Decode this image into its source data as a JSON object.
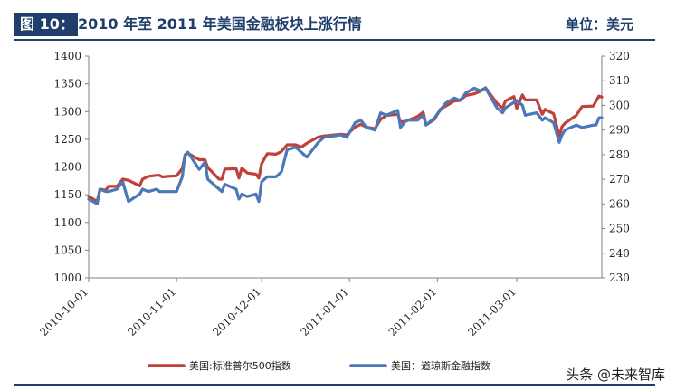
{
  "header": {
    "fig_label": "图 10：",
    "title": "2010 年至 2011 年美国金融板块上涨行情",
    "unit": "单位：美元"
  },
  "watermark": "头条 @未来智库",
  "colors": {
    "accent": "#1f3e6c",
    "sp500": "#c0413b",
    "dowfin": "#4a78b8",
    "axis": "#808080"
  },
  "chart_data": {
    "type": "line",
    "title": "",
    "xlabel": "",
    "ylabel": "",
    "x_ticks": [
      "2010-10-01",
      "2010-11-01",
      "2010-12-01",
      "2011-01-01",
      "2011-02-01",
      "2011-03-01"
    ],
    "x_range": [
      "2010-10-01",
      "2011-03-31"
    ],
    "y_left": {
      "min": 1000,
      "max": 1400,
      "step": 50
    },
    "y_right": {
      "min": 230,
      "max": 320,
      "step": 10
    },
    "legend_position": "bottom",
    "grid": false,
    "series": [
      {
        "name": "美国:标准普尔500指数",
        "axis": "left",
        "points": [
          [
            "2010-10-01",
            1147
          ],
          [
            "2010-10-04",
            1138
          ],
          [
            "2010-10-05",
            1160
          ],
          [
            "2010-10-07",
            1158
          ],
          [
            "2010-10-08",
            1165
          ],
          [
            "2010-10-11",
            1165
          ],
          [
            "2010-10-13",
            1178
          ],
          [
            "2010-10-15",
            1176
          ],
          [
            "2010-10-19",
            1166
          ],
          [
            "2010-10-20",
            1178
          ],
          [
            "2010-10-22",
            1183
          ],
          [
            "2010-10-25",
            1185
          ],
          [
            "2010-10-26",
            1185
          ],
          [
            "2010-10-27",
            1182
          ],
          [
            "2010-10-29",
            1183
          ],
          [
            "2010-11-01",
            1184
          ],
          [
            "2010-11-03",
            1197
          ],
          [
            "2010-11-04",
            1221
          ],
          [
            "2010-11-05",
            1225
          ],
          [
            "2010-11-09",
            1213
          ],
          [
            "2010-11-11",
            1213
          ],
          [
            "2010-11-12",
            1199
          ],
          [
            "2010-11-16",
            1178
          ],
          [
            "2010-11-17",
            1178
          ],
          [
            "2010-11-18",
            1196
          ],
          [
            "2010-11-22",
            1197
          ],
          [
            "2010-11-23",
            1180
          ],
          [
            "2010-11-24",
            1198
          ],
          [
            "2010-11-26",
            1189
          ],
          [
            "2010-11-29",
            1187
          ],
          [
            "2010-11-30",
            1180
          ],
          [
            "2010-12-01",
            1206
          ],
          [
            "2010-12-03",
            1224
          ],
          [
            "2010-12-06",
            1223
          ],
          [
            "2010-12-08",
            1228
          ],
          [
            "2010-12-10",
            1240
          ],
          [
            "2010-12-13",
            1240
          ],
          [
            "2010-12-15",
            1236
          ],
          [
            "2010-12-17",
            1243
          ],
          [
            "2010-12-21",
            1254
          ],
          [
            "2010-12-23",
            1256
          ],
          [
            "2010-12-29",
            1259
          ],
          [
            "2010-12-31",
            1258
          ],
          [
            "2011-01-03",
            1272
          ],
          [
            "2011-01-05",
            1277
          ],
          [
            "2011-01-07",
            1272
          ],
          [
            "2011-01-10",
            1269
          ],
          [
            "2011-01-12",
            1286
          ],
          [
            "2011-01-14",
            1293
          ],
          [
            "2011-01-18",
            1295
          ],
          [
            "2011-01-19",
            1281
          ],
          [
            "2011-01-21",
            1283
          ],
          [
            "2011-01-25",
            1291
          ],
          [
            "2011-01-27",
            1299
          ],
          [
            "2011-01-28",
            1276
          ],
          [
            "2011-01-31",
            1286
          ],
          [
            "2011-02-02",
            1304
          ],
          [
            "2011-02-04",
            1310
          ],
          [
            "2011-02-07",
            1319
          ],
          [
            "2011-02-09",
            1320
          ],
          [
            "2011-02-11",
            1329
          ],
          [
            "2011-02-14",
            1332
          ],
          [
            "2011-02-16",
            1336
          ],
          [
            "2011-02-18",
            1343
          ],
          [
            "2011-02-22",
            1315
          ],
          [
            "2011-02-24",
            1306
          ],
          [
            "2011-02-25",
            1319
          ],
          [
            "2011-02-28",
            1327
          ],
          [
            "2011-03-01",
            1306
          ],
          [
            "2011-03-03",
            1330
          ],
          [
            "2011-03-04",
            1321
          ],
          [
            "2011-03-08",
            1321
          ],
          [
            "2011-03-10",
            1295
          ],
          [
            "2011-03-11",
            1304
          ],
          [
            "2011-03-14",
            1296
          ],
          [
            "2011-03-16",
            1256
          ],
          [
            "2011-03-17",
            1273
          ],
          [
            "2011-03-18",
            1279
          ],
          [
            "2011-03-22",
            1293
          ],
          [
            "2011-03-24",
            1309
          ],
          [
            "2011-03-28",
            1310
          ],
          [
            "2011-03-29",
            1319
          ],
          [
            "2011-03-30",
            1328
          ],
          [
            "2011-03-31",
            1326
          ]
        ]
      },
      {
        "name": "美国：道琼斯金融指数",
        "axis": "right",
        "points": [
          [
            "2010-10-01",
            262
          ],
          [
            "2010-10-04",
            260
          ],
          [
            "2010-10-05",
            266
          ],
          [
            "2010-10-07",
            265
          ],
          [
            "2010-10-08",
            265
          ],
          [
            "2010-10-11",
            266
          ],
          [
            "2010-10-13",
            269
          ],
          [
            "2010-10-15",
            261
          ],
          [
            "2010-10-19",
            264
          ],
          [
            "2010-10-20",
            266
          ],
          [
            "2010-10-22",
            265
          ],
          [
            "2010-10-25",
            266
          ],
          [
            "2010-10-26",
            265
          ],
          [
            "2010-10-27",
            265
          ],
          [
            "2010-10-29",
            265
          ],
          [
            "2010-11-01",
            265
          ],
          [
            "2010-11-03",
            271
          ],
          [
            "2010-11-04",
            280
          ],
          [
            "2010-11-05",
            281
          ],
          [
            "2010-11-09",
            274
          ],
          [
            "2010-11-11",
            277
          ],
          [
            "2010-11-12",
            270
          ],
          [
            "2010-11-16",
            266
          ],
          [
            "2010-11-17",
            265
          ],
          [
            "2010-11-18",
            268
          ],
          [
            "2010-11-22",
            266
          ],
          [
            "2010-11-23",
            262
          ],
          [
            "2010-11-24",
            264
          ],
          [
            "2010-11-26",
            263
          ],
          [
            "2010-11-29",
            264
          ],
          [
            "2010-11-30",
            261
          ],
          [
            "2010-12-01",
            269
          ],
          [
            "2010-12-03",
            271
          ],
          [
            "2010-12-06",
            271
          ],
          [
            "2010-12-08",
            273
          ],
          [
            "2010-12-10",
            282
          ],
          [
            "2010-12-13",
            283
          ],
          [
            "2010-12-15",
            281
          ],
          [
            "2010-12-17",
            279
          ],
          [
            "2010-12-21",
            285
          ],
          [
            "2010-12-23",
            287
          ],
          [
            "2010-12-29",
            288
          ],
          [
            "2010-12-31",
            287
          ],
          [
            "2011-01-03",
            293
          ],
          [
            "2011-01-05",
            294
          ],
          [
            "2011-01-07",
            291
          ],
          [
            "2011-01-10",
            290
          ],
          [
            "2011-01-12",
            297
          ],
          [
            "2011-01-14",
            296
          ],
          [
            "2011-01-18",
            298
          ],
          [
            "2011-01-19",
            291
          ],
          [
            "2011-01-21",
            294
          ],
          [
            "2011-01-25",
            294
          ],
          [
            "2011-01-27",
            296
          ],
          [
            "2011-01-28",
            292
          ],
          [
            "2011-01-31",
            295
          ],
          [
            "2011-02-02",
            298
          ],
          [
            "2011-02-04",
            301
          ],
          [
            "2011-02-07",
            303
          ],
          [
            "2011-02-09",
            302
          ],
          [
            "2011-02-11",
            305
          ],
          [
            "2011-02-14",
            307
          ],
          [
            "2011-02-16",
            306
          ],
          [
            "2011-02-18",
            307
          ],
          [
            "2011-02-22",
            299
          ],
          [
            "2011-02-24",
            297
          ],
          [
            "2011-02-25",
            299
          ],
          [
            "2011-03-01",
            302
          ],
          [
            "2011-03-03",
            300
          ],
          [
            "2011-03-04",
            296
          ],
          [
            "2011-03-08",
            297
          ],
          [
            "2011-03-10",
            294
          ],
          [
            "2011-03-11",
            295
          ],
          [
            "2011-03-14",
            293
          ],
          [
            "2011-03-16",
            285
          ],
          [
            "2011-03-17",
            288
          ],
          [
            "2011-03-18",
            290
          ],
          [
            "2011-03-22",
            292
          ],
          [
            "2011-03-24",
            291
          ],
          [
            "2011-03-28",
            292
          ],
          [
            "2011-03-29",
            292
          ],
          [
            "2011-03-30",
            295
          ],
          [
            "2011-03-31",
            295
          ]
        ]
      }
    ]
  }
}
